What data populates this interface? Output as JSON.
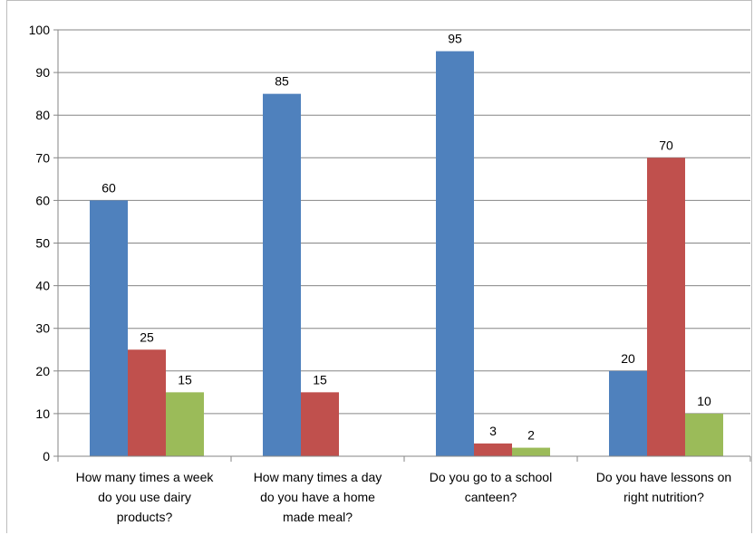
{
  "chart_data": {
    "type": "bar",
    "categories": [
      [
        "How many times a week",
        "do you use dairy",
        "products?"
      ],
      [
        "How many times a day",
        "do you have a home",
        "made meal?"
      ],
      [
        "Do you go to a school",
        "canteen?"
      ],
      [
        "Do you have lessons on",
        "right nutrition?"
      ]
    ],
    "series": [
      {
        "values": [
          60,
          85,
          95,
          20
        ],
        "labels": [
          "60",
          "85",
          "95",
          "20"
        ],
        "color": "#4f81bd"
      },
      {
        "values": [
          25,
          15,
          3,
          70
        ],
        "labels": [
          "25",
          "15",
          "3",
          "70"
        ],
        "color": "#c0504d"
      },
      {
        "values": [
          15,
          null,
          2,
          10
        ],
        "labels": [
          "15",
          "",
          "2",
          "10"
        ],
        "color": "#9bbb59"
      }
    ],
    "y_ticks": [
      "0",
      "10",
      "20",
      "30",
      "40",
      "50",
      "60",
      "70",
      "80",
      "90",
      "100"
    ],
    "ylim": [
      0,
      100
    ],
    "grid": true,
    "legend": "none"
  }
}
